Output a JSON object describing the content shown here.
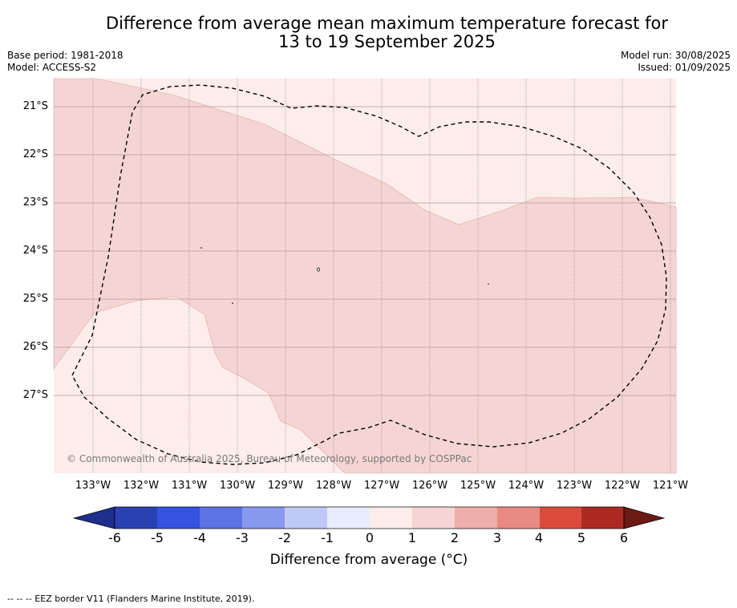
{
  "title_line1": "Difference from average mean maximum temperature forecast for",
  "title_line2": "13 to 19 September 2025",
  "base_period": "Base period: 1981-2018",
  "model": "Model: ACCESS-S2",
  "model_run": "Model run: 30/08/2025",
  "issued": "Issued: 01/09/2025",
  "latitude_labels": [
    "21°S",
    "22°S",
    "23°S",
    "24°S",
    "25°S",
    "26°S",
    "27°S"
  ],
  "longitude_labels": [
    "133°W",
    "132°W",
    "131°W",
    "130°W",
    "129°W",
    "128°W",
    "127°W",
    "126°W",
    "125°W",
    "124°W",
    "123°W",
    "122°W",
    "121°W"
  ],
  "copyright": "© Commonwealth of Australia 2025, Bureau of Meteorology, supported by COSPPac",
  "colorbar": {
    "ticks": [
      "-6",
      "-5",
      "-4",
      "-3",
      "-2",
      "-1",
      "0",
      "1",
      "2",
      "3",
      "4",
      "5",
      "6"
    ],
    "colors": [
      "#1e2f8c",
      "#2a41b5",
      "#3552e0",
      "#5c73e6",
      "#8898ee",
      "#c0c9f6",
      "#e9edfb",
      "#fcecea",
      "#f5d5d3",
      "#eeaea9",
      "#e98a82",
      "#dc4a3e",
      "#ad2a22",
      "#6b1a14"
    ],
    "label": "Difference from average (°C)"
  },
  "footer_note": "-- -- -- EEZ border V11 (Flanders Marine Institute, 2019).",
  "map_colors": {
    "class_0_1": "#fcecea",
    "class_1_2": "#f5d5d3"
  }
}
